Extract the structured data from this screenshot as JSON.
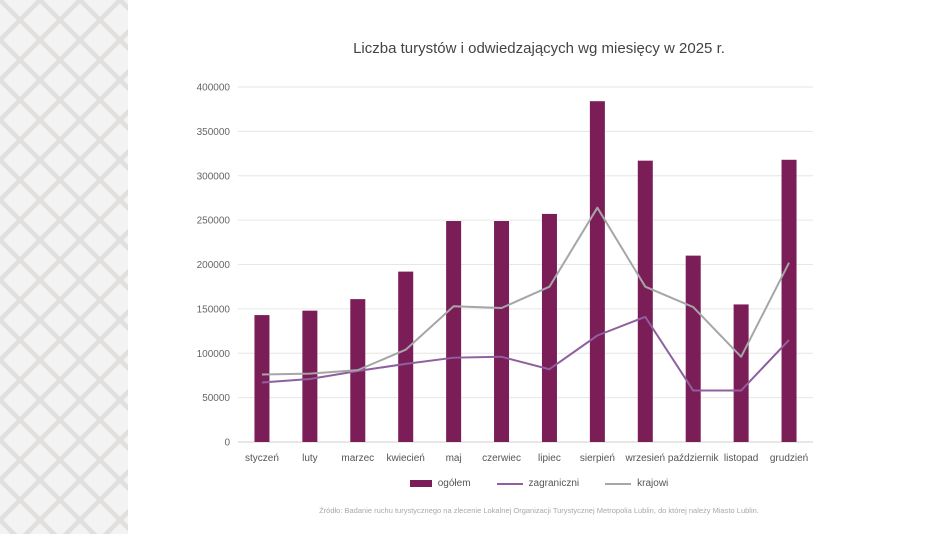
{
  "chart_data": {
    "type": "bar",
    "title": "Liczba turystów i odwiedzających wg miesięcy w 2025 r.",
    "categories": [
      "styczeń",
      "luty",
      "marzec",
      "kwiecień",
      "maj",
      "czerwiec",
      "lipiec",
      "sierpień",
      "wrzesień",
      "październik",
      "listopad",
      "grudzień"
    ],
    "ylim": [
      0,
      400000
    ],
    "yticks": [
      0,
      50000,
      100000,
      150000,
      200000,
      250000,
      300000,
      350000,
      400000
    ],
    "grid": true,
    "legend_position": "bottom",
    "series": [
      {
        "name": "ogółem",
        "type": "bar",
        "color": "#7b1e58",
        "values": [
          143000,
          148000,
          161000,
          192000,
          249000,
          249000,
          257000,
          384000,
          317000,
          210000,
          155000,
          318000
        ]
      },
      {
        "name": "zagraniczni",
        "type": "line",
        "color": "#8f5f9e",
        "values": [
          67000,
          71000,
          80000,
          88000,
          95000,
          96000,
          82000,
          120000,
          141000,
          58000,
          58000,
          115000
        ]
      },
      {
        "name": "krajowi",
        "type": "line",
        "color": "#a6a6a6",
        "values": [
          76000,
          77000,
          81000,
          104000,
          153000,
          151000,
          175000,
          264000,
          175000,
          152000,
          96000,
          202000
        ]
      }
    ]
  },
  "source_note": "Źródło: Badanie ruchu turystycznego na zlecenie Lokalnej Organizacji Turystycznej Metropolia Lublin, do której należy Miasto Lublin."
}
